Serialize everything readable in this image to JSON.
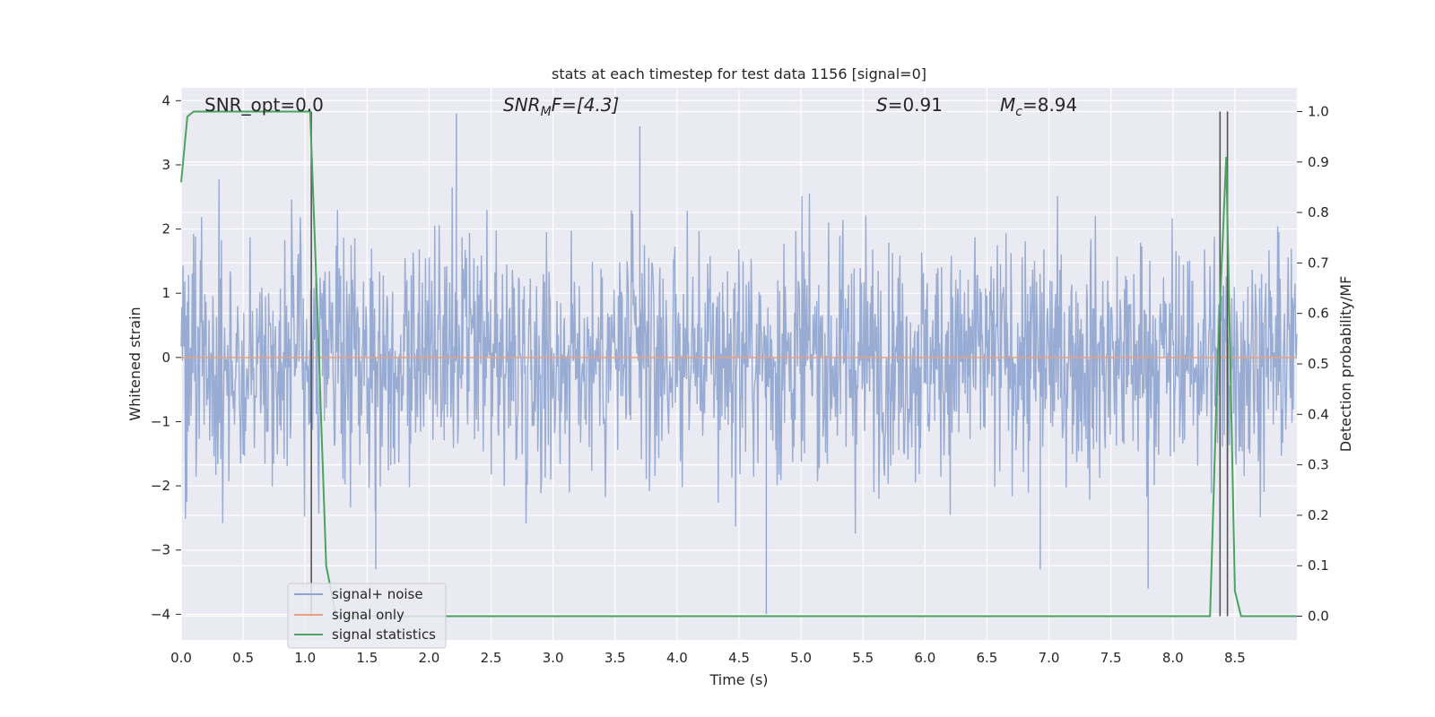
{
  "chart_data": {
    "type": "line",
    "title": "stats at each timestep for test data 1156 [signal=0]",
    "xlabel": "Time (s)",
    "ylabel_left": "Whitened strain",
    "ylabel_right": "Detection probability/MF",
    "xlim": [
      0.0,
      9.0
    ],
    "ylim_left": [
      -4.4,
      4.2
    ],
    "ylim_right": [
      -0.047,
      1.047
    ],
    "x_ticks": [
      "0.0",
      "0.5",
      "1.0",
      "1.5",
      "2.0",
      "2.5",
      "3.0",
      "3.5",
      "4.0",
      "4.5",
      "5.0",
      "5.5",
      "6.0",
      "6.5",
      "7.0",
      "7.5",
      "8.0",
      "8.5"
    ],
    "y_ticks_left": [
      "4",
      "3",
      "2",
      "1",
      "0",
      "−1",
      "−2",
      "−3",
      "−4"
    ],
    "y_ticks_right": [
      "1.0",
      "0.9",
      "0.8",
      "0.7",
      "0.6",
      "0.5",
      "0.4",
      "0.3",
      "0.2",
      "0.1",
      "0.0"
    ],
    "grid": true,
    "legend_position": "lower-left",
    "annotations": {
      "snr_opt": "SNR_opt=0.0",
      "snr_mf_symbol": "SNR",
      "snr_mf_sub": "M",
      "snr_mf_rest": "F=[4.3]",
      "s_symbol": "S",
      "s_rest": "=0.91",
      "mc_symbol": "M",
      "mc_sub": "c",
      "mc_rest": "=8.94"
    },
    "series": [
      {
        "name": "signal+ noise",
        "axis": "left",
        "color": "#8fa4ce",
        "description_values": {
          "typical_range": [
            -1.5,
            1.5
          ],
          "max": 3.8,
          "min": -4.0
        }
      },
      {
        "name": "signal only",
        "axis": "left",
        "color": "#e8a07e",
        "x": [
          0.0,
          9.0
        ],
        "y": [
          0.0,
          0.0
        ]
      },
      {
        "name": "signal statistics",
        "axis": "right",
        "color": "#4aa35e",
        "x": [
          0.0,
          0.05,
          0.1,
          0.2,
          0.5,
          1.0,
          1.04,
          1.1,
          1.17,
          1.25,
          1.5,
          3.0,
          5.0,
          7.0,
          8.0,
          8.3,
          8.36,
          8.43,
          8.5,
          8.55,
          9.0
        ],
        "y": [
          0.86,
          0.99,
          1.0,
          1.0,
          1.0,
          1.0,
          1.0,
          0.6,
          0.1,
          0.0,
          0.0,
          0.0,
          0.0,
          0.0,
          0.0,
          0.0,
          0.5,
          0.91,
          0.05,
          0.0,
          0.0
        ]
      }
    ],
    "vertical_lines": [
      1.05,
      8.38,
      8.44
    ],
    "vertical_line_color": "#555555"
  }
}
